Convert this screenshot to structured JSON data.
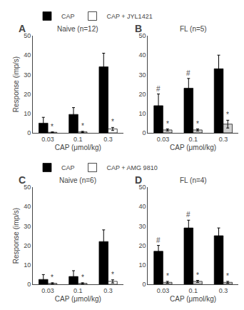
{
  "chart_data": [
    {
      "type": "bar",
      "title": "Naive (n=12)",
      "categories": [
        "0.03",
        "0.1",
        "0.3"
      ],
      "series": [
        {
          "name": "CAP",
          "color": "#000000",
          "values": [
            5,
            9.5,
            34
          ],
          "errors": [
            3,
            3.5,
            7
          ]
        },
        {
          "name": "CAP + JYL1421",
          "color": "#ffffff",
          "values": [
            0.3,
            0.5,
            2
          ],
          "errors": [
            0.2,
            0.3,
            0.8
          ]
        }
      ],
      "xlabel": "CAP (μmol/kg)",
      "ylabel": "Response (imp/s)",
      "ylim": [
        0,
        50
      ],
      "yticks": [
        0,
        10,
        20,
        30,
        40,
        50
      ],
      "grid": false,
      "legend": "top",
      "annotations": [
        {
          "text": "A"
        },
        {
          "text": "*",
          "category": "0.03",
          "series": "CAP + JYL1421"
        },
        {
          "text": "*",
          "category": "0.1",
          "series": "CAP + JYL1421"
        },
        {
          "text": "*",
          "category": "0.3",
          "series": "CAP + JYL1421"
        }
      ]
    },
    {
      "type": "bar",
      "title": "FL (n=5)",
      "categories": [
        "0.03",
        "0.1",
        "0.3"
      ],
      "series": [
        {
          "name": "CAP",
          "color": "#000000",
          "values": [
            14,
            23,
            33
          ],
          "errors": [
            6,
            5,
            7
          ]
        },
        {
          "name": "CAP + JYL1421",
          "color": "#d0d0d0",
          "values": [
            1.5,
            1.5,
            4.5
          ],
          "errors": [
            0.5,
            0.5,
            2
          ]
        }
      ],
      "xlabel": "CAP (μmol/kg)",
      "ylim": [
        0,
        50
      ],
      "yticks": [
        0,
        10,
        20,
        30,
        40,
        50
      ],
      "grid": false,
      "annotations": [
        {
          "text": "B"
        },
        {
          "text": "*",
          "category": "0.03",
          "series": "CAP + JYL1421"
        },
        {
          "text": "*",
          "category": "0.1",
          "series": "CAP + JYL1421"
        },
        {
          "text": "*",
          "category": "0.3",
          "series": "CAP + JYL1421"
        },
        {
          "text": "#",
          "category": "0.03",
          "series": "CAP"
        },
        {
          "text": "#",
          "category": "0.1",
          "series": "CAP"
        }
      ]
    },
    {
      "type": "bar",
      "title": "Naive (n=6)",
      "categories": [
        "0.03",
        "0.1",
        "0.3"
      ],
      "series": [
        {
          "name": "CAP",
          "color": "#000000",
          "values": [
            2.5,
            4,
            22
          ],
          "errors": [
            2.5,
            3,
            6
          ]
        },
        {
          "name": "CAP + AMG 9810",
          "color": "#ffffff",
          "values": [
            0.5,
            0.5,
            1.5
          ],
          "errors": [
            0.3,
            0.3,
            0.8
          ]
        }
      ],
      "xlabel": "CAP (μmol/kg)",
      "ylabel": "Response (imp/s)",
      "ylim": [
        0,
        50
      ],
      "yticks": [
        0,
        10,
        20,
        30,
        40,
        50
      ],
      "grid": false,
      "legend": "top",
      "annotations": [
        {
          "text": "C"
        },
        {
          "text": "*",
          "category": "0.03",
          "series": "CAP + AMG 9810"
        },
        {
          "text": "*",
          "category": "0.1",
          "series": "CAP + AMG 9810"
        },
        {
          "text": "*",
          "category": "0.3",
          "series": "CAP + AMG 9810"
        }
      ]
    },
    {
      "type": "bar",
      "title": "FL (n=4)",
      "categories": [
        "0.03",
        "0.1",
        "0.3"
      ],
      "series": [
        {
          "name": "CAP",
          "color": "#000000",
          "values": [
            17,
            29,
            25
          ],
          "errors": [
            3,
            4,
            4
          ]
        },
        {
          "name": "CAP + AMG 9810",
          "color": "#d0d0d0",
          "values": [
            1,
            1.5,
            1
          ],
          "errors": [
            0.5,
            0.5,
            0.5
          ]
        }
      ],
      "xlabel": "CAP (μmol/kg)",
      "ylim": [
        0,
        50
      ],
      "yticks": [
        0,
        10,
        20,
        30,
        40,
        50
      ],
      "grid": false,
      "annotations": [
        {
          "text": "D"
        },
        {
          "text": "*",
          "category": "0.03",
          "series": "CAP + AMG 9810"
        },
        {
          "text": "*",
          "category": "0.1",
          "series": "CAP + AMG 9810"
        },
        {
          "text": "*",
          "category": "0.3",
          "series": "CAP + AMG 9810"
        },
        {
          "text": "#",
          "category": "0.03",
          "series": "CAP"
        },
        {
          "text": "#",
          "category": "0.1",
          "series": "CAP"
        }
      ]
    }
  ]
}
